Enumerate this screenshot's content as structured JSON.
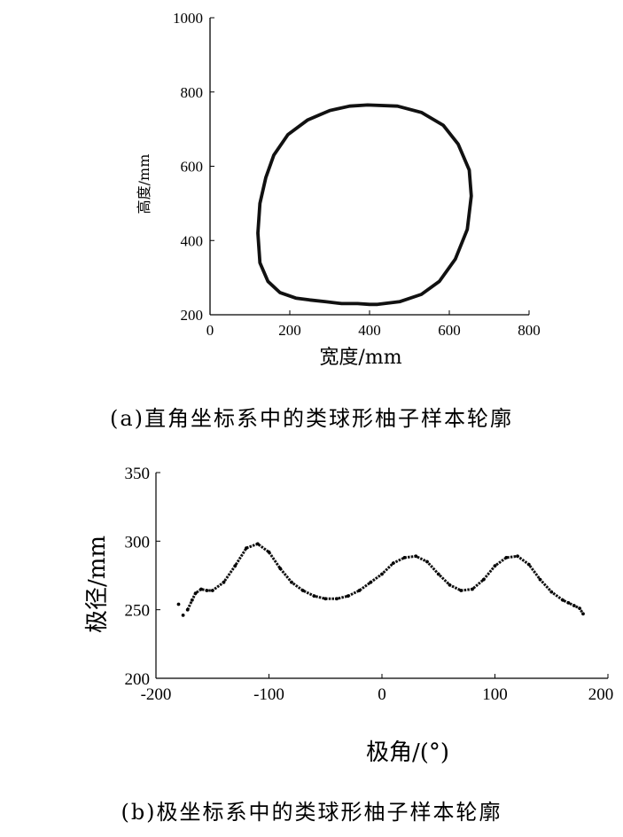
{
  "chart_data": [
    {
      "type": "line",
      "caption": "(a)直角坐标系中的类球形柚子样本轮廓",
      "xlabel": "宽度/mm",
      "ylabel": "高度/mm",
      "xlim": [
        0,
        800
      ],
      "ylim": [
        200,
        1000
      ],
      "xticks": [
        "0",
        "200",
        "400",
        "600",
        "800"
      ],
      "yticks": [
        "200",
        "400",
        "600",
        "800",
        "1000"
      ],
      "grid": false,
      "series": [
        {
          "closed": true,
          "x": [
            395,
            470,
            530,
            585,
            622,
            650,
            655,
            645,
            615,
            575,
            530,
            475,
            420,
            400,
            370,
            330,
            290,
            250,
            215,
            175,
            145,
            125,
            120,
            125,
            140,
            160,
            195,
            245,
            300,
            350
          ],
          "y": [
            765,
            762,
            745,
            710,
            660,
            590,
            520,
            430,
            350,
            290,
            255,
            235,
            228,
            228,
            230,
            230,
            235,
            240,
            245,
            260,
            290,
            340,
            420,
            500,
            570,
            630,
            685,
            725,
            750,
            762
          ]
        }
      ]
    },
    {
      "type": "scatter",
      "caption": "(b)极坐标系中的类球形柚子样本轮廓",
      "xlabel": "极角/(°)",
      "ylabel": "极径/mm",
      "xlim": [
        -200,
        200
      ],
      "ylim": [
        200,
        350
      ],
      "xticks": [
        "-200",
        "-100",
        "0",
        "100",
        "200"
      ],
      "yticks": [
        "200",
        "250",
        "300",
        "350"
      ],
      "grid": false,
      "series": [
        {
          "x": [
            -180,
            -176,
            -172,
            -168,
            -165,
            -160,
            -155,
            -150,
            -140,
            -130,
            -120,
            -110,
            -100,
            -90,
            -80,
            -70,
            -60,
            -50,
            -40,
            -30,
            -20,
            -10,
            0,
            10,
            20,
            30,
            40,
            50,
            60,
            70,
            80,
            90,
            100,
            110,
            120,
            130,
            140,
            150,
            160,
            165,
            170,
            175,
            178
          ],
          "y": [
            254,
            246,
            250,
            257,
            262,
            265,
            264,
            264,
            270,
            282,
            295,
            298,
            292,
            280,
            270,
            264,
            260,
            258,
            258,
            260,
            264,
            270,
            276,
            284,
            288,
            289,
            285,
            276,
            268,
            264,
            265,
            272,
            282,
            288,
            289,
            283,
            272,
            263,
            257,
            255,
            253,
            251,
            247
          ]
        }
      ]
    }
  ]
}
